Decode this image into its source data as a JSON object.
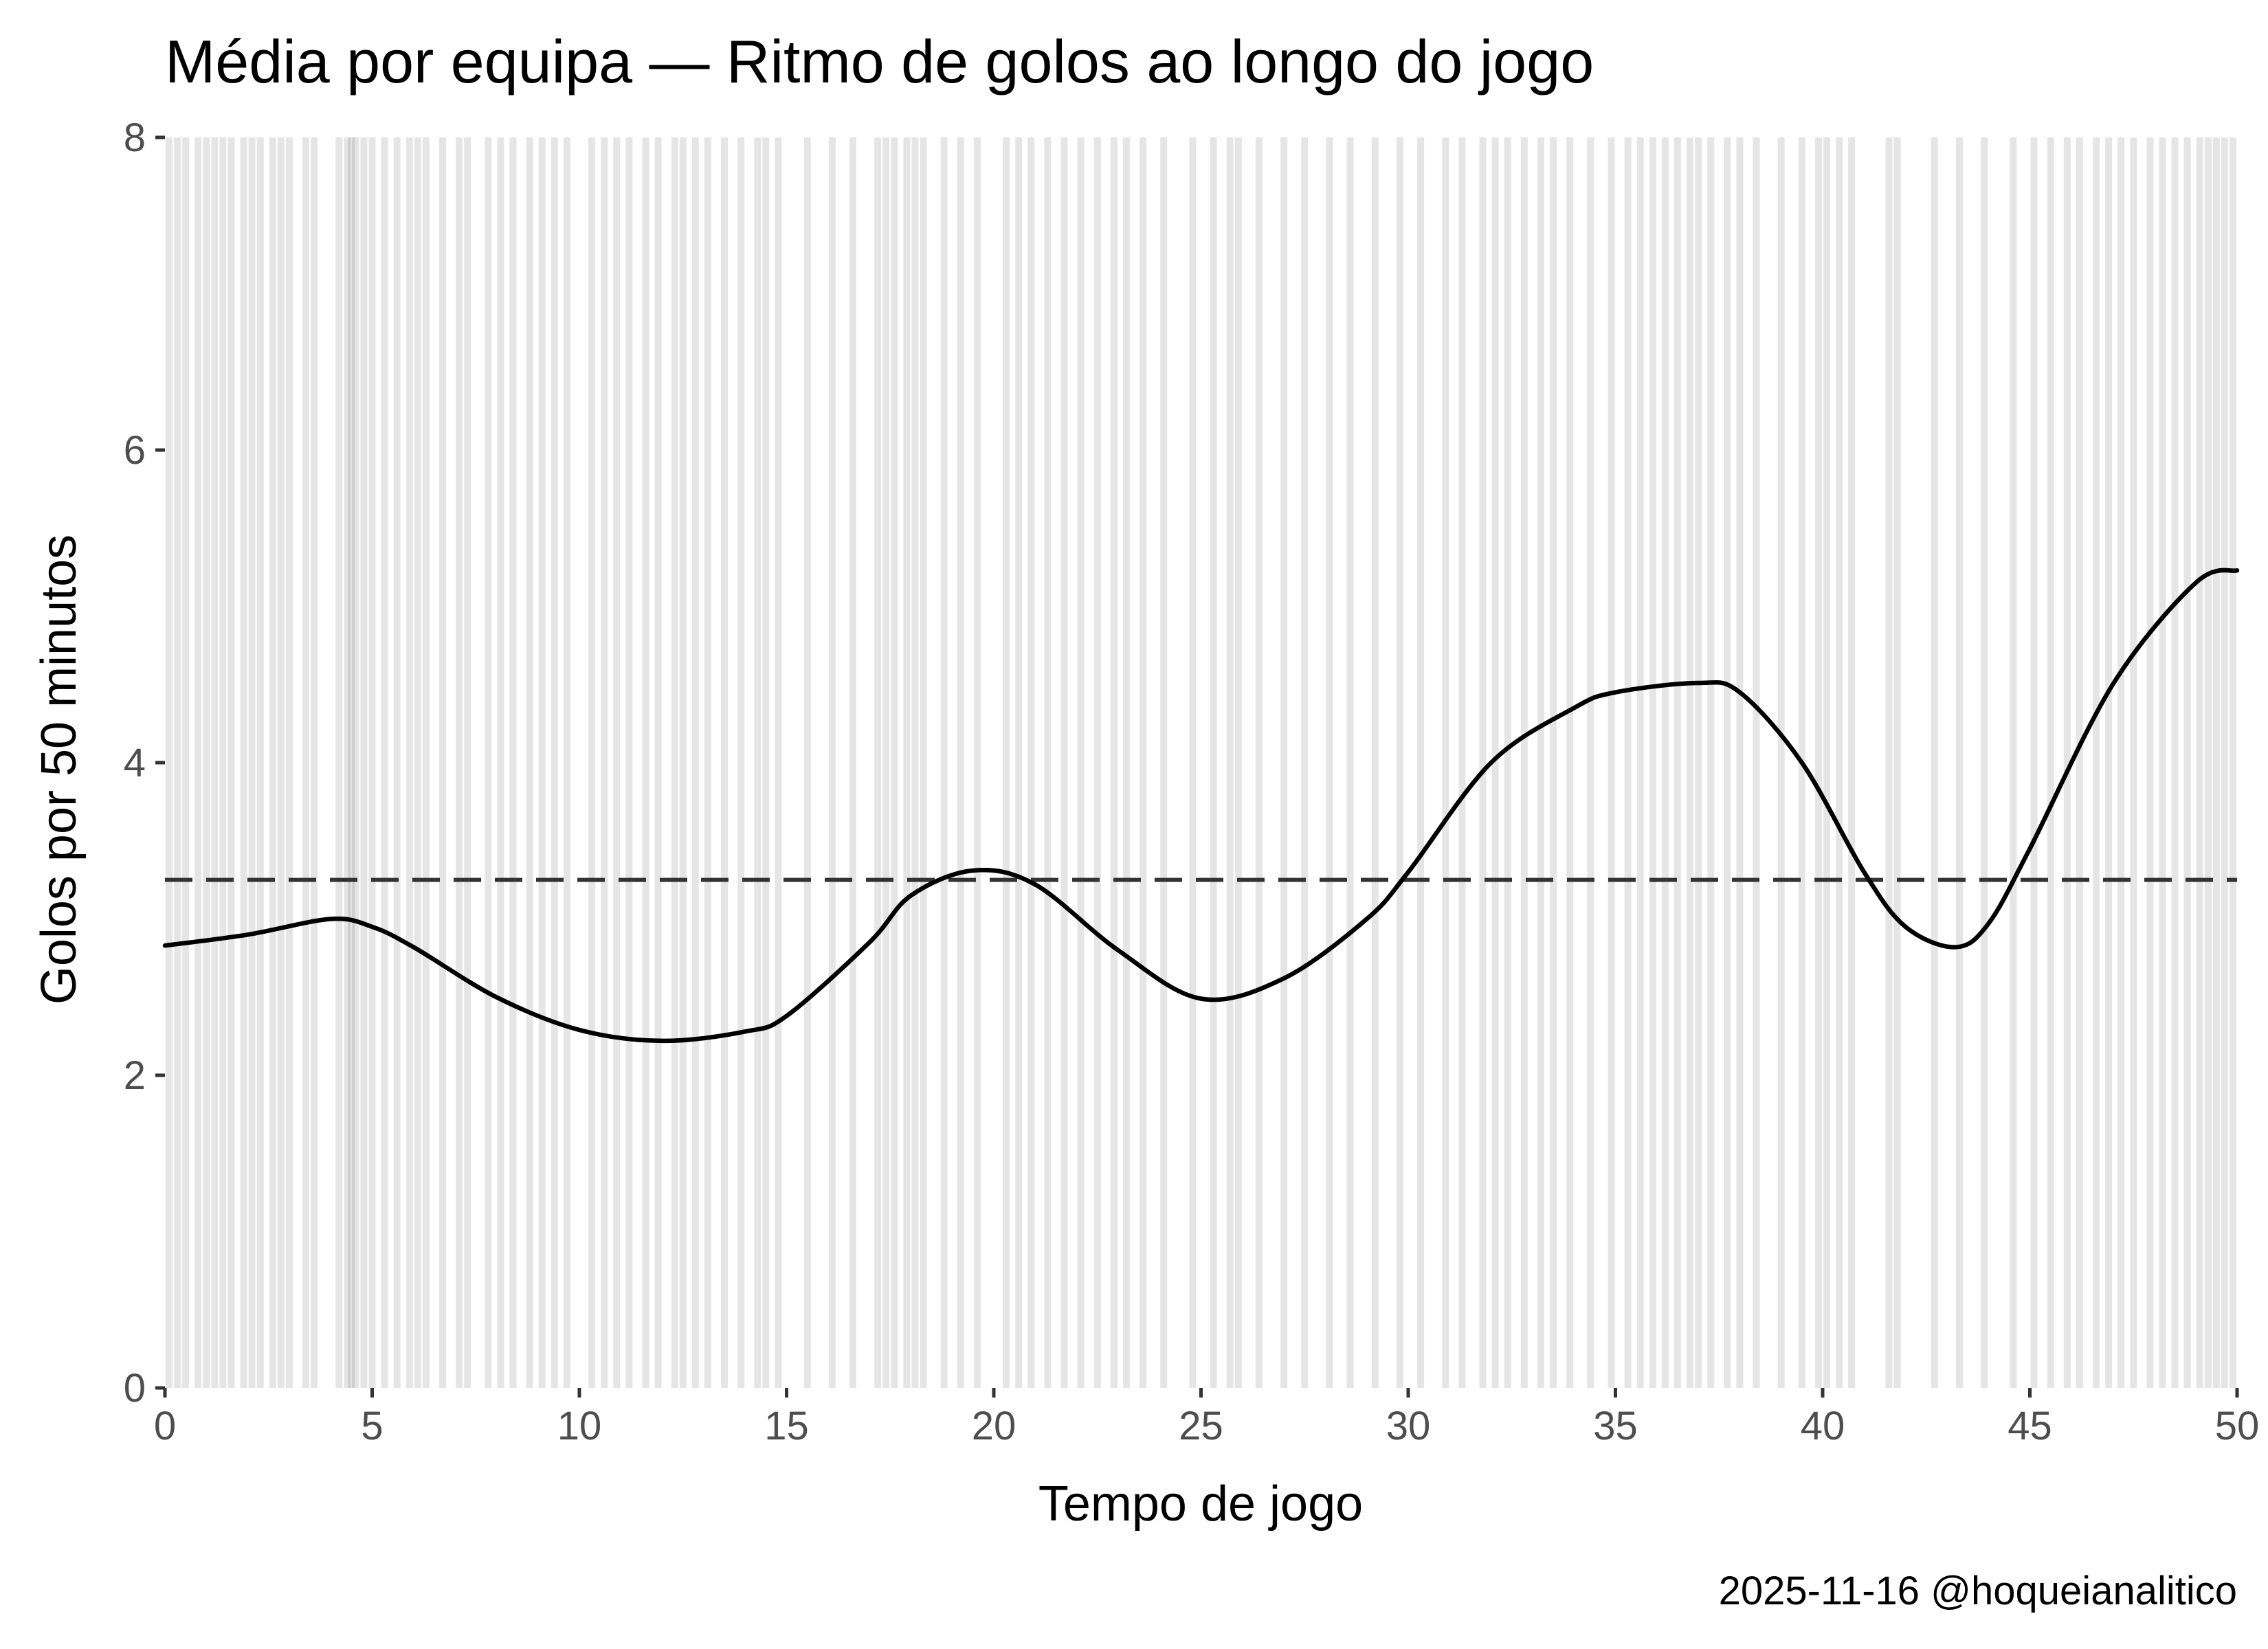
{
  "chart_data": {
    "type": "line",
    "title": "Média por equipa — Ritmo de golos ao longo do jogo",
    "xlabel": "Tempo de jogo",
    "ylabel": "Golos por 50 minutos",
    "caption": "2025-11-16 @hoqueianalitico",
    "xlim": [
      0,
      50
    ],
    "ylim": [
      0,
      8
    ],
    "x_ticks": [
      0,
      5,
      10,
      15,
      20,
      25,
      30,
      35,
      40,
      45,
      50
    ],
    "y_ticks": [
      0,
      2,
      4,
      6,
      8
    ],
    "grid": false,
    "legend": "none",
    "average_line": {
      "value": 3.25,
      "style": "dashed",
      "color": "#333333"
    },
    "series": [
      {
        "color": "#000000",
        "x": [
          0,
          2,
          4,
          5,
          6,
          8,
          10,
          12,
          14,
          15,
          17,
          18,
          19.5,
          21,
          23,
          25,
          27,
          29,
          30,
          32,
          34,
          35,
          37,
          38,
          39.5,
          41,
          42,
          43.2,
          44,
          45,
          47,
          49,
          50
        ],
        "y": [
          2.83,
          2.9,
          3.0,
          2.95,
          2.82,
          2.5,
          2.29,
          2.22,
          2.28,
          2.38,
          2.85,
          3.15,
          3.31,
          3.22,
          2.8,
          2.49,
          2.62,
          3.0,
          3.3,
          4.0,
          4.35,
          4.45,
          4.51,
          4.45,
          4.0,
          3.3,
          2.95,
          2.82,
          2.97,
          3.45,
          4.5,
          5.15,
          5.23
        ]
      }
    ],
    "goal_events_x": [
      0.1,
      0.3,
      0.5,
      0.8,
      1.0,
      1.2,
      1.4,
      1.6,
      1.9,
      2.1,
      2.3,
      2.6,
      2.8,
      3.0,
      3.4,
      3.6,
      4.2,
      4.4,
      4.5,
      4.6,
      4.8,
      5.0,
      5.3,
      5.6,
      5.9,
      6.1,
      6.3,
      6.7,
      7.1,
      7.3,
      7.8,
      8.1,
      8.4,
      8.8,
      9.1,
      9.4,
      9.7,
      10.3,
      10.6,
      10.9,
      11.2,
      11.6,
      11.9,
      12.3,
      12.5,
      12.8,
      13.1,
      13.5,
      13.9,
      14.3,
      14.5,
      14.8,
      15.5,
      16.1,
      16.6,
      17.2,
      17.4,
      17.6,
      17.9,
      18.1,
      18.3,
      18.8,
      19.2,
      19.6,
      20.3,
      20.6,
      20.9,
      21.3,
      21.7,
      22.1,
      22.5,
      22.9,
      23.2,
      23.6,
      24.1,
      24.8,
      25.3,
      25.7,
      25.9,
      26.4,
      27.0,
      27.5,
      28.1,
      28.6,
      29.2,
      29.8,
      30.3,
      30.9,
      31.3,
      31.8,
      32.1,
      32.4,
      32.8,
      33.2,
      33.5,
      33.9,
      34.4,
      34.9,
      35.3,
      35.6,
      35.9,
      36.2,
      36.5,
      36.8,
      37.0,
      37.3,
      37.7,
      38.0,
      38.4,
      39.0,
      39.5,
      39.9,
      40.1,
      40.4,
      40.7,
      41.6,
      41.8,
      42.7,
      43.3,
      43.9,
      44.6,
      45.1,
      45.5,
      45.9,
      46.2,
      46.6,
      46.9,
      47.2,
      47.5,
      47.9,
      48.2,
      48.5,
      48.8,
      49.1,
      49.3,
      49.5,
      49.7,
      49.9
    ]
  }
}
